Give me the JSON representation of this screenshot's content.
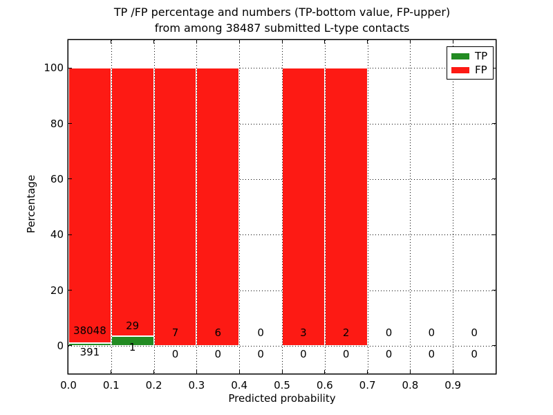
{
  "title": {
    "line1": "TP /FP percentage and numbers (TP-bottom value, FP-upper)",
    "line2": "from among 38487 submitted L-type contacts"
  },
  "y_axis": {
    "label": "Percentage",
    "ticks": [
      "0",
      "20",
      "40",
      "60",
      "80",
      "100"
    ],
    "tick_values": [
      0,
      20,
      40,
      60,
      80,
      100
    ]
  },
  "x_axis": {
    "label": "Predicted probability",
    "ticks": [
      "0.0",
      "0.1",
      "0.2",
      "0.3",
      "0.4",
      "0.5",
      "0.6",
      "0.7",
      "0.8",
      "0.9"
    ],
    "tick_values": [
      0.0,
      0.1,
      0.2,
      0.3,
      0.4,
      0.5,
      0.6,
      0.7,
      0.8,
      0.9
    ]
  },
  "legend": {
    "items": [
      {
        "label": "TP",
        "color": "#228b22"
      },
      {
        "label": "FP",
        "color": "#fd1a14"
      }
    ]
  },
  "chart_data": {
    "type": "bar",
    "stacked": true,
    "title": "TP /FP percentage and numbers (TP-bottom value, FP-upper) from among 38487 submitted L-type contacts",
    "xlabel": "Predicted probability",
    "ylabel": "Percentage",
    "total_submitted_contacts": 38487,
    "bin_starts": [
      0.0,
      0.1,
      0.2,
      0.3,
      0.4,
      0.5,
      0.6,
      0.7,
      0.8,
      0.9
    ],
    "bin_width": 0.1,
    "series": [
      {
        "name": "TP",
        "color": "#228b22",
        "counts": [
          391,
          1,
          0,
          0,
          0,
          0,
          0,
          0,
          0,
          0
        ]
      },
      {
        "name": "FP",
        "color": "#fd1a14",
        "counts": [
          38048,
          29,
          7,
          6,
          0,
          3,
          2,
          0,
          0,
          0
        ]
      }
    ],
    "bars_percent_stacked_to": 100,
    "xlim": [
      0,
      1
    ],
    "ylim": [
      -10,
      110
    ],
    "grid": true,
    "grid_style": "dotted",
    "legend_position": "upper right"
  }
}
